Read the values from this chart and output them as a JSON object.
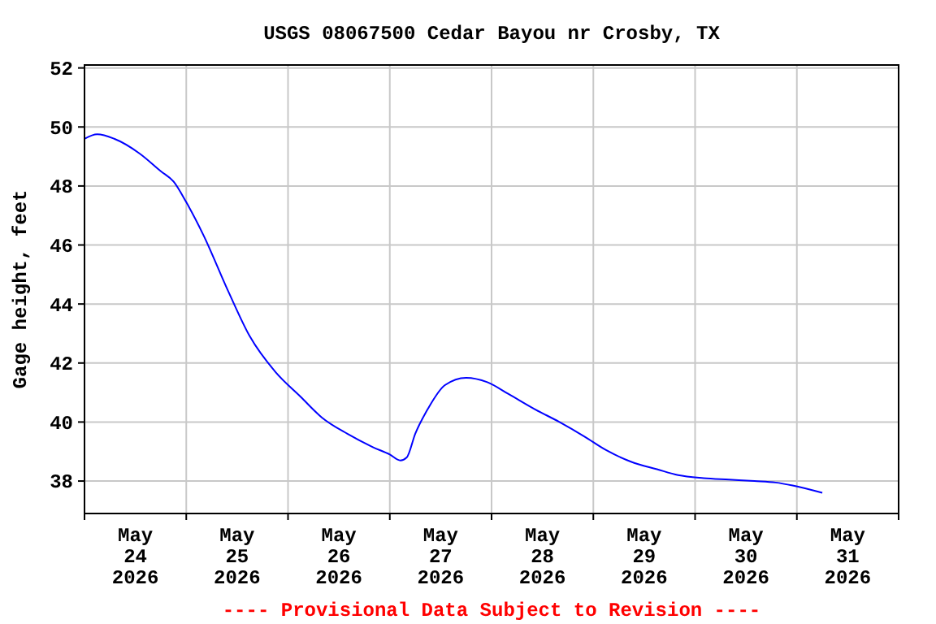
{
  "chart_data": {
    "type": "line",
    "title": "USGS 08067500 Cedar Bayou nr Crosby, TX",
    "ylabel": "Gage height, feet",
    "annotations": [
      "---- Provisional Data Subject to Revision ----"
    ],
    "x": [
      "2026-05-24T00:00",
      "2026-05-24T03:00",
      "2026-05-24T07:00",
      "2026-05-24T13:00",
      "2026-05-24T18:00",
      "2026-05-24T21:00",
      "2026-05-25T00:00",
      "2026-05-25T04:00",
      "2026-05-25T10:00",
      "2026-05-25T15:00",
      "2026-05-25T21:00",
      "2026-05-26T03:00",
      "2026-05-26T08:00",
      "2026-05-26T14:00",
      "2026-05-26T20:00",
      "2026-05-27T00:00",
      "2026-05-27T02:30",
      "2026-05-27T04:00",
      "2026-05-27T06:00",
      "2026-05-27T09:00",
      "2026-05-27T13:00",
      "2026-05-27T18:00",
      "2026-05-27T23:00",
      "2026-05-28T04:00",
      "2026-05-28T10:00",
      "2026-05-28T16:00",
      "2026-05-28T22:00",
      "2026-05-29T03:00",
      "2026-05-29T09:00",
      "2026-05-29T15:00",
      "2026-05-29T20:00",
      "2026-05-30T02:00",
      "2026-05-30T08:00",
      "2026-05-30T14:00",
      "2026-05-30T19:00",
      "2026-05-30T23:00",
      "2026-05-31T06:00"
    ],
    "series": [
      {
        "color": "#0000ff",
        "values": [
          49.6,
          49.75,
          49.6,
          49.1,
          48.5,
          48.15,
          47.45,
          46.35,
          44.4,
          42.9,
          41.7,
          40.85,
          40.15,
          39.6,
          39.15,
          38.9,
          38.7,
          38.8,
          39.6,
          40.45,
          41.25,
          41.5,
          41.35,
          40.95,
          40.45,
          40,
          39.5,
          39.05,
          38.65,
          38.4,
          38.2,
          38.1,
          38.05,
          38,
          37.95,
          37.85,
          37.6
        ]
      }
    ],
    "xlim": [
      "2026-05-24T00:00",
      "2026-06-01T00:00"
    ],
    "xticks": [
      {
        "value": "2026-05-24T00:00",
        "label": null
      },
      {
        "value": "2026-05-24T12:00",
        "label": "May\n24\n2026"
      },
      {
        "value": "2026-05-25T00:00",
        "label": null
      },
      {
        "value": "2026-05-25T12:00",
        "label": "May\n25\n2026"
      },
      {
        "value": "2026-05-26T00:00",
        "label": null
      },
      {
        "value": "2026-05-26T12:00",
        "label": "May\n26\n2026"
      },
      {
        "value": "2026-05-27T00:00",
        "label": null
      },
      {
        "value": "2026-05-27T12:00",
        "label": "May\n27\n2026"
      },
      {
        "value": "2026-05-28T00:00",
        "label": null
      },
      {
        "value": "2026-05-28T12:00",
        "label": "May\n28\n2026"
      },
      {
        "value": "2026-05-29T00:00",
        "label": null
      },
      {
        "value": "2026-05-29T12:00",
        "label": "May\n29\n2026"
      },
      {
        "value": "2026-05-30T00:00",
        "label": null
      },
      {
        "value": "2026-05-30T12:00",
        "label": "May\n30\n2026"
      },
      {
        "value": "2026-05-31T00:00",
        "label": null
      },
      {
        "value": "2026-05-31T12:00",
        "label": "May\n31\n2026"
      },
      {
        "value": "2026-06-01T00:00",
        "label": null
      }
    ],
    "ylim": [
      36.9,
      52.1
    ],
    "yticks": [
      38,
      40,
      42,
      44,
      46,
      48,
      50,
      52
    ],
    "grid": true,
    "marker": "none",
    "line_style": "solid"
  }
}
